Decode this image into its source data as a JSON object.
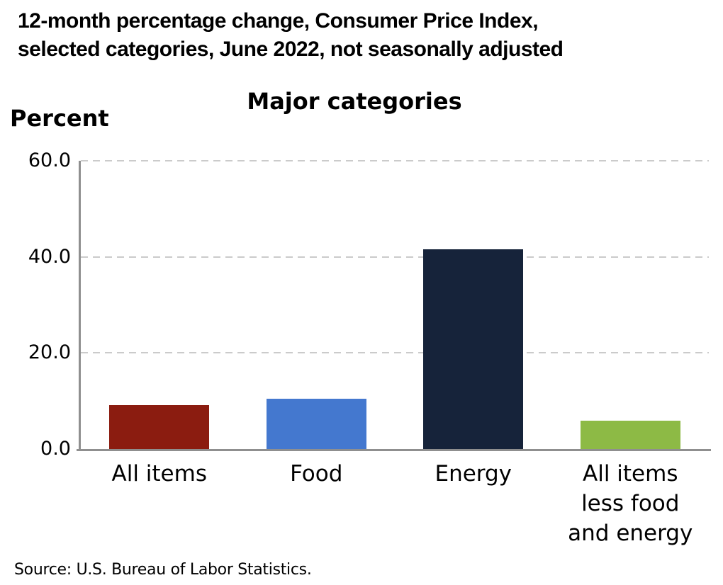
{
  "header": {
    "title_lines": [
      "12-month percentage change, Consumer Price Index,",
      "selected categories, June 2022, not seasonally adjusted"
    ]
  },
  "chart": {
    "subtitle": "Major categories",
    "y_axis_label": "Percent"
  },
  "chart_data": {
    "type": "bar",
    "title": "Major categories",
    "xlabel": "",
    "ylabel": "Percent",
    "categories": [
      "All items",
      "Food",
      "Energy",
      "All items less food and energy"
    ],
    "category_label_lines": [
      [
        "All items"
      ],
      [
        "Food"
      ],
      [
        "Energy"
      ],
      [
        "All items",
        "less food",
        "and energy"
      ]
    ],
    "values": [
      9.1,
      10.4,
      41.6,
      5.9
    ],
    "bar_colors": [
      "#8b1c10",
      "#4478cf",
      "#16233a",
      "#8dba45"
    ],
    "ylim": [
      0,
      60
    ],
    "yticks": [
      0,
      20,
      40,
      60
    ],
    "ytick_labels": [
      "0.0",
      "20.0",
      "40.0",
      "60.0"
    ],
    "grid": "horizontal-dashed",
    "gridline_color": "#cbcbcb",
    "axis_color": "#8f8f8f",
    "legend": "none"
  },
  "footer": {
    "source": "Source: U.S. Bureau of Labor Statistics."
  }
}
